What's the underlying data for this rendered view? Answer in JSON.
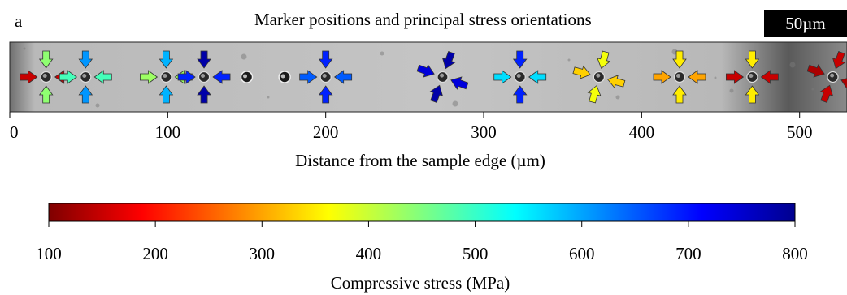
{
  "panel_label": "a",
  "scale_bar_label": "50µm",
  "chart_data": [
    {
      "type": "scatter",
      "title": "Marker positions and principal stress orientations",
      "xlabel": "Distance from the sample edge (µm)",
      "xlim": [
        0,
        530
      ],
      "xticks": [
        0,
        100,
        200,
        300,
        400,
        500
      ],
      "markers": [
        {
          "x": 23,
          "s1": 150,
          "s2": 440,
          "angle": 0
        },
        {
          "x": 48,
          "s1": 490,
          "s2": 610,
          "angle": 0
        },
        {
          "x": 99,
          "s1": 430,
          "s2": 590,
          "angle": 0
        },
        {
          "x": 123,
          "s1": 690,
          "s2": 780,
          "angle": 0
        },
        {
          "x": 200,
          "s1": 650,
          "s2": 690,
          "angle": 0
        },
        {
          "x": 274,
          "s1": 740,
          "s2": 780,
          "angle": 20
        },
        {
          "x": 323,
          "s1": 560,
          "s2": 690,
          "angle": 0
        },
        {
          "x": 373,
          "s1": 330,
          "s2": 370,
          "angle": 15
        },
        {
          "x": 424,
          "s1": 300,
          "s2": 350,
          "angle": 0
        },
        {
          "x": 470,
          "s1": 150,
          "s2": 350,
          "angle": 0
        },
        {
          "x": 521,
          "s1": 130,
          "s2": 150,
          "angle": 20
        }
      ],
      "holes_x": [
        150,
        174
      ]
    },
    {
      "type": "colorbar",
      "xlabel": "Compressive stress (MPa)",
      "range": [
        100,
        800
      ],
      "ticks": [
        100,
        200,
        300,
        400,
        500,
        600,
        700,
        800
      ],
      "colormap": [
        "#7f0000",
        "#ff0000",
        "#ff8000",
        "#ffff00",
        "#80ff80",
        "#00ffff",
        "#0080ff",
        "#0000ff",
        "#00008f"
      ]
    }
  ]
}
